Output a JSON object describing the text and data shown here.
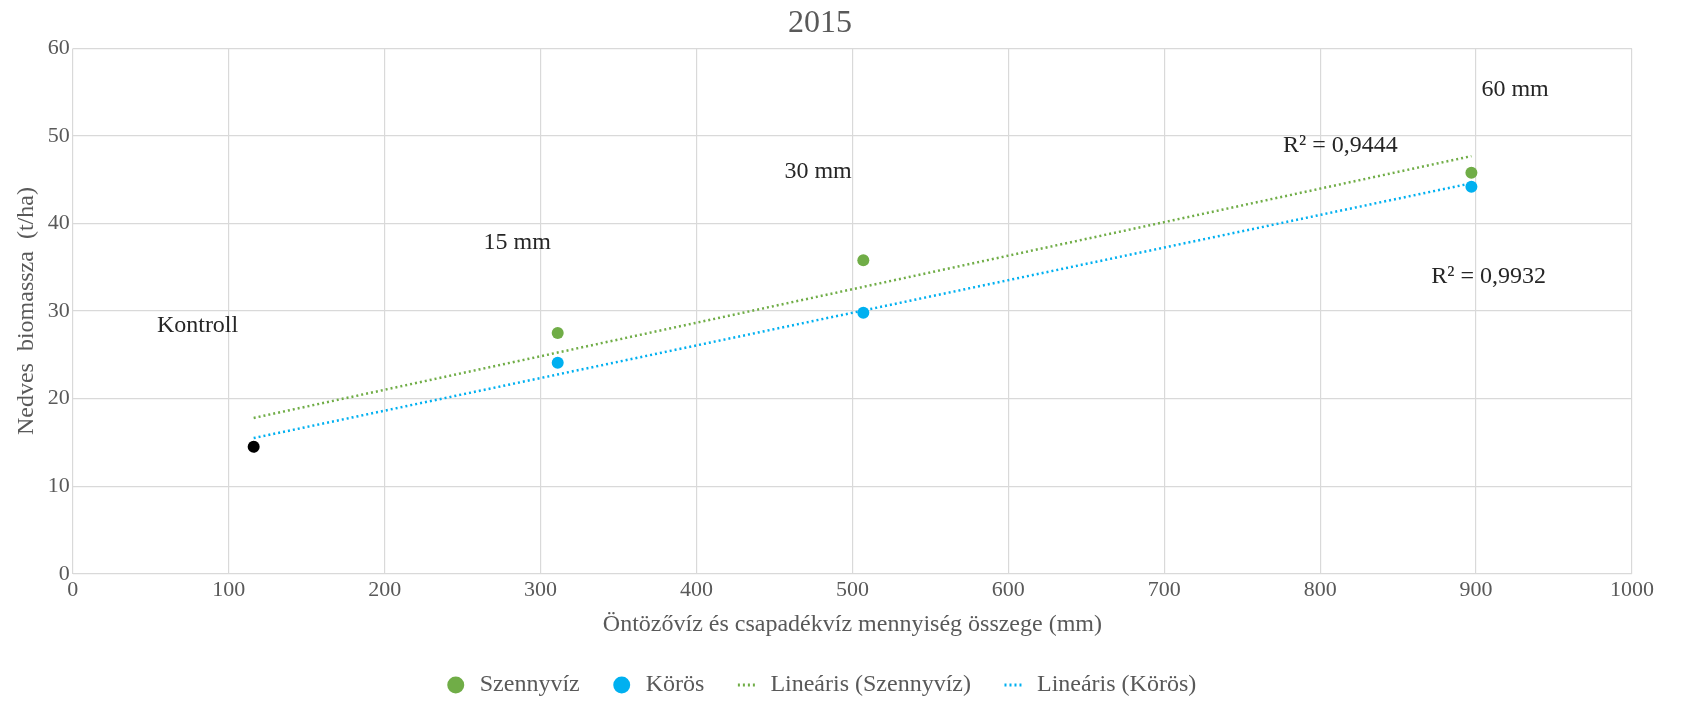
{
  "chart_data": {
    "type": "scatter",
    "title": "2015",
    "xlabel": "Öntözővíz és csapadékvíz mennyiség összege (mm)",
    "ylabel": "Nedves  biomassza  (t/ha)",
    "series": [
      {
        "name": "Szennyvíz",
        "type": "scatter",
        "color": "#70ad47",
        "x": [
          311,
          507,
          897
        ],
        "values": [
          27.5,
          35.8,
          45.8
        ],
        "marker": "circle"
      },
      {
        "name": "Körös",
        "type": "scatter",
        "color": "#00b0f0",
        "x": [
          311,
          507,
          897
        ],
        "values": [
          24.1,
          29.8,
          44.2
        ],
        "marker": "circle"
      },
      {
        "type": "scatter",
        "color": "#000000",
        "x": [
          116
        ],
        "values": [
          14.5
        ],
        "marker": "circle"
      },
      {
        "name": "Lineáris (Szennyvíz)",
        "type": "line",
        "color": "#70ad47",
        "x": [
          116,
          897
        ],
        "values": [
          17.8,
          47.7
        ],
        "marker": "none",
        "line_style": "dotted"
      },
      {
        "name": "Lineáris (Körös)",
        "type": "line",
        "color": "#00b0f0",
        "x": [
          116,
          897
        ],
        "values": [
          15.5,
          44.6
        ],
        "marker": "none",
        "line_style": "dotted"
      }
    ],
    "xlim": [
      0,
      1000
    ],
    "xticks": [
      0,
      100,
      200,
      300,
      400,
      500,
      600,
      700,
      800,
      900,
      1000
    ],
    "ylim": [
      0,
      60
    ],
    "yticks": [
      0,
      10,
      20,
      30,
      40,
      50,
      60
    ],
    "grid": true,
    "legend": "bottom",
    "annotations": [
      "Kontroll",
      "15 mm",
      "30 mm",
      "60 mm",
      "R² = 0,9444",
      "R² = 0,9932"
    ]
  }
}
